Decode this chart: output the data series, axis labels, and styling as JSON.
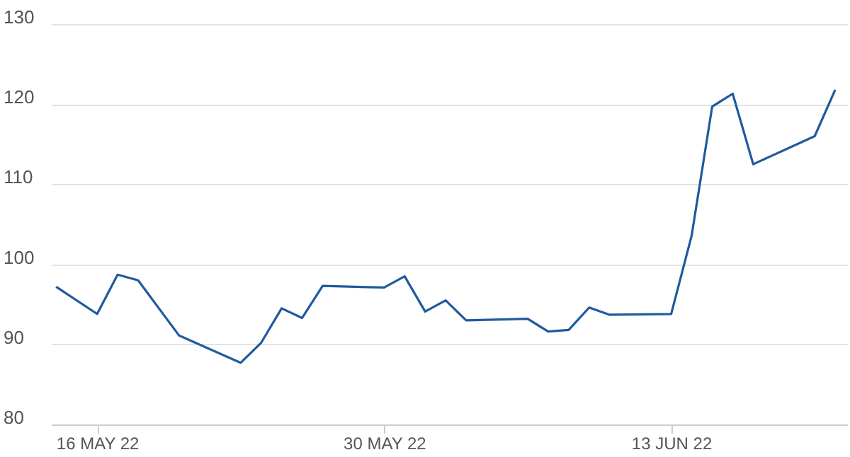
{
  "chart_data": {
    "type": "line",
    "x": [
      "2022-05-14",
      "2022-05-16",
      "2022-05-17",
      "2022-05-18",
      "2022-05-20",
      "2022-05-23",
      "2022-05-24",
      "2022-05-25",
      "2022-05-26",
      "2022-05-27",
      "2022-05-30",
      "2022-05-31",
      "2022-06-01",
      "2022-06-02",
      "2022-06-03",
      "2022-06-06",
      "2022-06-07",
      "2022-06-08",
      "2022-06-09",
      "2022-06-10",
      "2022-06-13",
      "2022-06-14",
      "2022-06-15",
      "2022-06-16",
      "2022-06-17",
      "2022-06-20",
      "2022-06-21"
    ],
    "series": [
      {
        "color": "#1f5a9e",
        "values": [
          97.2,
          93.8,
          98.7,
          98.0,
          91.1,
          87.7,
          90.2,
          94.5,
          93.3,
          97.3,
          97.1,
          98.5,
          94.1,
          95.5,
          93.0,
          93.2,
          91.6,
          91.8,
          94.6,
          93.7,
          93.8,
          103.6,
          119.7,
          121.3,
          112.5,
          116.0,
          121.8
        ]
      }
    ],
    "xlim": [
      "2022-05-13T18:00",
      "2022-06-21T14:00"
    ],
    "xticks": [
      {
        "value": "2022-05-16",
        "label": "16 MAY 22"
      },
      {
        "value": "2022-05-30",
        "label": "30 MAY 22"
      },
      {
        "value": "2022-06-13",
        "label": "13 JUN 22"
      }
    ],
    "ylim": [
      80,
      130
    ],
    "yticks": [
      80,
      90,
      100,
      110,
      120,
      130
    ],
    "grid": "y"
  }
}
